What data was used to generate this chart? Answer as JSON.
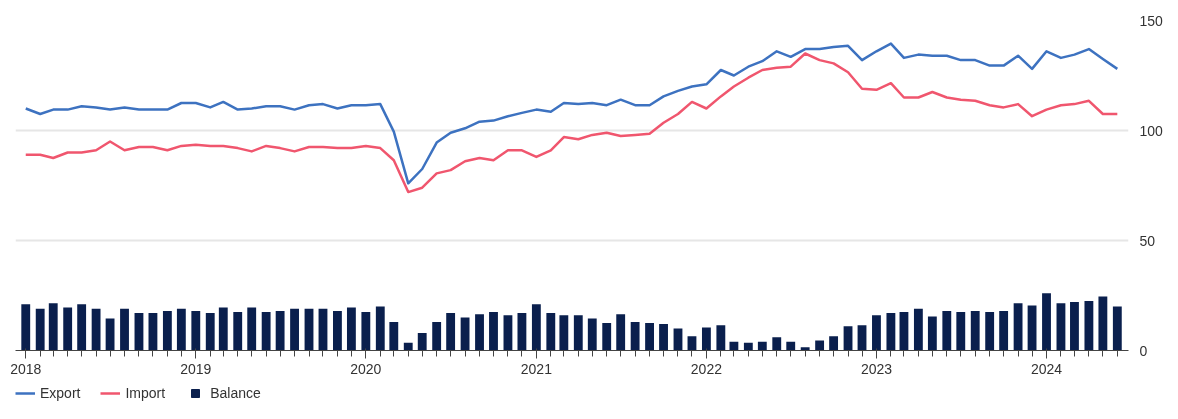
{
  "chart_data": {
    "type": "line",
    "x": [
      "2018-01",
      "2018-02",
      "2018-03",
      "2018-04",
      "2018-05",
      "2018-06",
      "2018-07",
      "2018-08",
      "2018-09",
      "2018-10",
      "2018-11",
      "2018-12",
      "2019-01",
      "2019-02",
      "2019-03",
      "2019-04",
      "2019-05",
      "2019-06",
      "2019-07",
      "2019-08",
      "2019-09",
      "2019-10",
      "2019-11",
      "2019-12",
      "2020-01",
      "2020-02",
      "2020-03",
      "2020-04",
      "2020-05",
      "2020-06",
      "2020-07",
      "2020-08",
      "2020-09",
      "2020-10",
      "2020-11",
      "2020-12",
      "2021-01",
      "2021-02",
      "2021-03",
      "2021-04",
      "2021-05",
      "2021-06",
      "2021-07",
      "2021-08",
      "2021-09",
      "2021-10",
      "2021-11",
      "2021-12",
      "2022-01",
      "2022-02",
      "2022-03",
      "2022-04",
      "2022-05",
      "2022-06",
      "2022-07",
      "2022-08",
      "2022-09",
      "2022-10",
      "2022-11",
      "2022-12",
      "2023-01",
      "2023-02",
      "2023-03",
      "2023-04",
      "2023-05",
      "2023-06",
      "2023-07",
      "2023-08",
      "2023-09",
      "2023-10",
      "2023-11",
      "2023-12",
      "2024-01",
      "2024-02",
      "2024-03",
      "2024-04",
      "2024-05",
      "2024-06"
    ],
    "series": [
      {
        "name": "Export",
        "color": "#3d72c0",
        "values": [
          110,
          107.5,
          109.5,
          109.5,
          111,
          110.5,
          109.5,
          110.5,
          109.5,
          109.5,
          109.5,
          112.5,
          112.5,
          110.5,
          113,
          109.5,
          110,
          111,
          111,
          109.5,
          111.5,
          112,
          110,
          111.5,
          111.5,
          112,
          99.5,
          76,
          82.5,
          94.5,
          99,
          101,
          104,
          104.5,
          106.5,
          108,
          109.5,
          108.5,
          112.5,
          112,
          112.5,
          111.5,
          114,
          111.5,
          111.5,
          115.5,
          118,
          120,
          121,
          127.5,
          125,
          129,
          131.5,
          136,
          133.5,
          137,
          137,
          138,
          138.5,
          132,
          136,
          139.5,
          133,
          134.5,
          134,
          134,
          132,
          132,
          129.5,
          129.5,
          134,
          128,
          136,
          133,
          134.5,
          137,
          132.5,
          128
        ]
      },
      {
        "name": "Import",
        "color": "#f0566e",
        "values": [
          89,
          89,
          87.5,
          90,
          90,
          91,
          95,
          91,
          92.5,
          92.5,
          91,
          93,
          93.5,
          93,
          93,
          92,
          90.5,
          93,
          92,
          90.5,
          92.5,
          92.5,
          92,
          92,
          93,
          92,
          86.5,
          72,
          74,
          80.5,
          82,
          86,
          87.5,
          86.5,
          91,
          91,
          88,
          91,
          97,
          96,
          98,
          99,
          97.5,
          98,
          98.5,
          103.5,
          107.5,
          113,
          110,
          115.5,
          120,
          124,
          127.5,
          128.5,
          129,
          135,
          132,
          130.5,
          126.5,
          119,
          118.5,
          121.5,
          115,
          115,
          117.5,
          115,
          114,
          113.5,
          111.5,
          110.5,
          112,
          106.5,
          109.5,
          111.5,
          112,
          113.5,
          107.5,
          107.5
        ]
      },
      {
        "name": "Balance",
        "type": "bar",
        "color": "#0a1f4d",
        "values": [
          21,
          19,
          21.5,
          19.5,
          21,
          19,
          14.5,
          19,
          17,
          17,
          18,
          19,
          18,
          17,
          19.5,
          17.5,
          19.5,
          17.5,
          18,
          19,
          19,
          19,
          18,
          19.5,
          17.5,
          20,
          13,
          3.5,
          8,
          13,
          17,
          15,
          16.5,
          17.5,
          16,
          17,
          21,
          17,
          16,
          16,
          14.5,
          12.5,
          16.5,
          13,
          12.5,
          12,
          10,
          6.5,
          10.5,
          11.5,
          4,
          3.5,
          4,
          6,
          4,
          1.5,
          4.5,
          6.5,
          11,
          11.5,
          16,
          17,
          17.5,
          19,
          15.5,
          18,
          17.5,
          18,
          17.5,
          18,
          21.5,
          20.5,
          26,
          21.5,
          22,
          22.5,
          24.5,
          20
        ]
      }
    ],
    "ylim": [
      0,
      150
    ],
    "yticks": [
      0,
      50,
      100,
      150
    ],
    "xlim": [
      "2017-12-10",
      "2024-06-25"
    ],
    "xticks": [
      "2018",
      "2019",
      "2020",
      "2021",
      "2022",
      "2023",
      "2024"
    ],
    "grid": "y",
    "legend": "bottom left"
  }
}
